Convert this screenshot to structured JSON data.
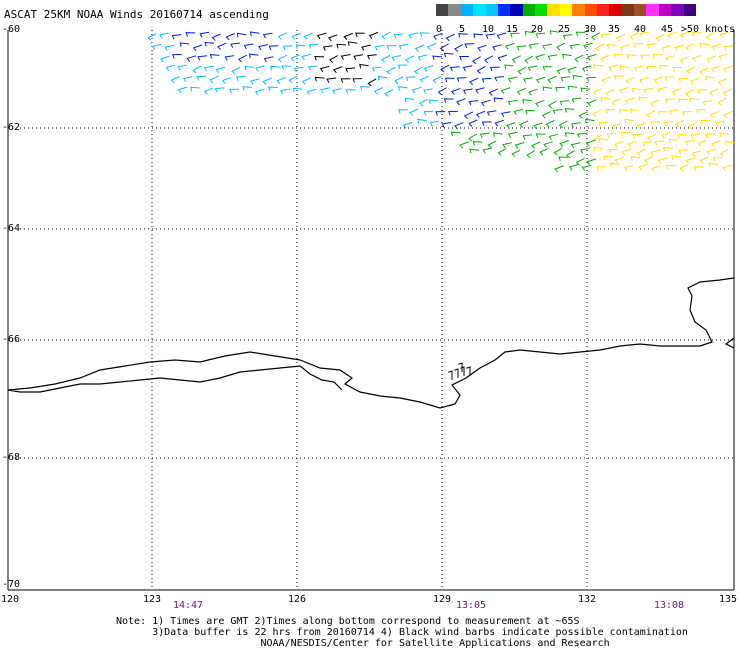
{
  "title": "ASCAT 25KM NOAA Winds 20160714 ascending",
  "legend": {
    "labels": [
      "0",
      "5",
      "10",
      "15",
      "20",
      "25",
      "30",
      "35",
      "40",
      "45",
      ">50 knots"
    ],
    "colors": [
      "#444444",
      "#888888",
      "#00b0ff",
      "#00e0ff",
      "#00c8f8",
      "#0030ff",
      "#0000c0",
      "#00b000",
      "#00e000",
      "#ffe000",
      "#ffff00",
      "#ff8000",
      "#ff5000",
      "#ff2020",
      "#e00000",
      "#7a3a1a",
      "#a05020",
      "#ff30ff",
      "#c000c0",
      "#8000c0",
      "#400080"
    ]
  },
  "axes": {
    "lat_labels": [
      "-60",
      "-62",
      "-64",
      "-66",
      "-68",
      "-70"
    ],
    "lon_labels": [
      "120",
      "123",
      "126",
      "129",
      "132",
      "135"
    ],
    "times": [
      "14:47",
      "13:05",
      "13:08"
    ]
  },
  "notes": [
    "Note: 1) Times are GMT 2)Times along bottom correspond to measurement at ~65S",
    "      3)Data buffer is 22 hrs from 20160714 4) Black wind barbs indicate possible contamination",
    "                        NOAA/NESDIS/Center for Satellite Applications and Research"
  ],
  "wind_field": {
    "description_colors": {
      "slow": "#888888",
      "cyan": "#00c0ff",
      "blue": "#0020e0",
      "green": "#00b000",
      "yellow": "#ffe000",
      "black": "#000000"
    }
  }
}
